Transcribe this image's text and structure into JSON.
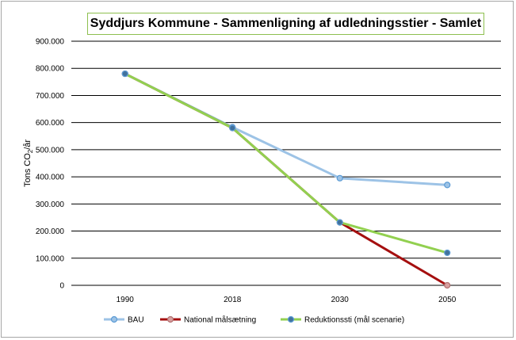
{
  "chart_data": {
    "type": "line",
    "title": "Syddjurs Kommune - Sammenligning af udledningsstier - Samlet",
    "ylabel_main": "Tons CO",
    "ylabel_sub": "2",
    "ylabel_tail": "/år",
    "categories": [
      "1990",
      "2018",
      "2030",
      "2050"
    ],
    "ylim": [
      0,
      900000
    ],
    "y_ticks": [
      {
        "value": 0,
        "label": "0"
      },
      {
        "value": 100000,
        "label": "100.000"
      },
      {
        "value": 200000,
        "label": "200.000"
      },
      {
        "value": 300000,
        "label": "300.000"
      },
      {
        "value": 400000,
        "label": "400.000"
      },
      {
        "value": 500000,
        "label": "500.000"
      },
      {
        "value": 600000,
        "label": "600.000"
      },
      {
        "value": 700000,
        "label": "700.000"
      },
      {
        "value": 800000,
        "label": "800.000"
      },
      {
        "value": 900000,
        "label": "900.000"
      }
    ],
    "grid": true,
    "legend_position": "bottom",
    "series": [
      {
        "name": "BAU",
        "color": "#9dc3e6",
        "marker_fill": "#9dc3e6",
        "marker_stroke": "#5b9bd5",
        "values": [
          780000,
          583000,
          395000,
          370000
        ]
      },
      {
        "name": "National målsætning",
        "color": "#a50f0f",
        "marker_fill": "#d8a0a0",
        "marker_stroke": "#b07070",
        "values": [
          780000,
          580000,
          232000,
          0
        ]
      },
      {
        "name": "Reduktionssti (mål scenarie)",
        "color": "#92d050",
        "marker_fill": "#41719c",
        "marker_stroke": "#5b9bd5",
        "values": [
          780000,
          580000,
          232000,
          120000
        ]
      }
    ]
  }
}
